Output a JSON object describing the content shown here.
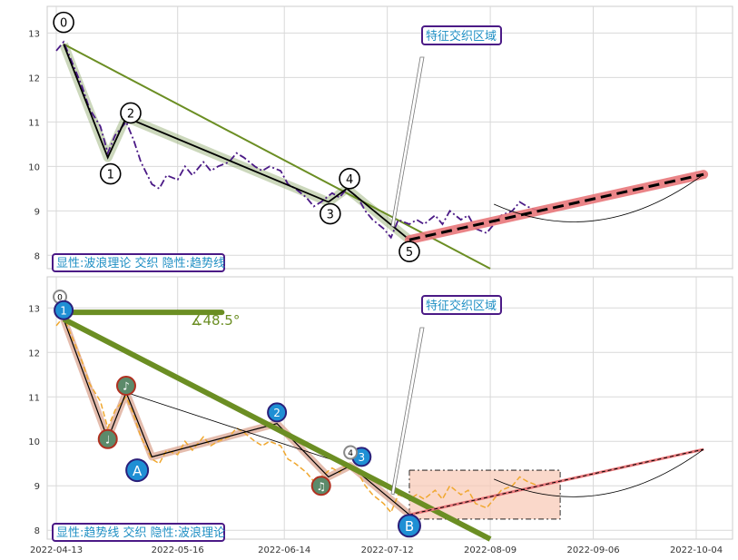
{
  "chart_data": [
    {
      "type": "line",
      "panel": "top",
      "ylim": [
        7.7,
        13.6
      ],
      "y_ticks": [
        "8",
        "9",
        "10",
        "11",
        "12",
        "13"
      ],
      "annotation_box": "特征交织区域",
      "caption": "显性:波浪理论 交织 隐性:趋势线",
      "price_series": {
        "x": [
          "2022-04-13",
          "2022-04-15",
          "2022-04-18",
          "2022-04-20",
          "2022-04-22",
          "2022-04-25",
          "2022-04-27",
          "2022-04-29",
          "2022-05-02",
          "2022-05-04",
          "2022-05-06",
          "2022-05-09",
          "2022-05-11",
          "2022-05-13",
          "2022-05-16",
          "2022-05-18",
          "2022-05-20",
          "2022-05-23",
          "2022-05-25",
          "2022-05-27",
          "2022-05-30",
          "2022-06-01",
          "2022-06-03",
          "2022-06-06",
          "2022-06-08",
          "2022-06-10",
          "2022-06-13",
          "2022-06-15",
          "2022-06-17",
          "2022-06-20",
          "2022-06-22",
          "2022-06-24",
          "2022-06-27",
          "2022-06-29",
          "2022-07-01",
          "2022-07-04",
          "2022-07-06",
          "2022-07-08",
          "2022-07-11",
          "2022-07-13",
          "2022-07-15",
          "2022-07-18",
          "2022-07-20",
          "2022-07-22",
          "2022-07-25",
          "2022-07-27",
          "2022-07-29",
          "2022-08-01",
          "2022-08-03",
          "2022-08-05",
          "2022-08-08",
          "2022-08-10",
          "2022-08-12",
          "2022-08-15",
          "2022-08-17",
          "2022-08-19",
          "2022-08-22"
        ],
        "y": [
          12.6,
          12.8,
          12.2,
          11.8,
          11.3,
          10.9,
          10.3,
          10.7,
          11.0,
          10.6,
          10.1,
          9.6,
          9.5,
          9.8,
          9.7,
          10.0,
          9.8,
          10.1,
          9.9,
          10.0,
          10.1,
          10.3,
          10.2,
          10.0,
          9.9,
          10.0,
          9.9,
          9.6,
          9.5,
          9.3,
          9.1,
          9.2,
          9.4,
          9.3,
          9.5,
          9.3,
          9.0,
          8.8,
          8.6,
          8.4,
          8.8,
          8.7,
          8.8,
          8.7,
          8.9,
          8.7,
          9.0,
          8.8,
          8.9,
          8.6,
          8.5,
          8.7,
          8.9,
          9.0,
          9.2,
          9.1,
          9.0
        ]
      },
      "wave_points": [
        {
          "label": "0",
          "date": "2022-04-15",
          "value": 12.75
        },
        {
          "label": "1",
          "date": "2022-04-27",
          "value": 10.2
        },
        {
          "label": "2",
          "date": "2022-05-02",
          "value": 11.1
        },
        {
          "label": "3",
          "date": "2022-06-26",
          "value": 9.2
        },
        {
          "label": "4",
          "date": "2022-07-01",
          "value": 9.5
        },
        {
          "label": "5",
          "date": "2022-07-18",
          "value": 8.35
        }
      ],
      "projection": {
        "from": {
          "date": "2022-07-18",
          "value": 8.35
        },
        "to": {
          "date": "2022-10-06",
          "value": 9.82
        }
      },
      "trendline": {
        "from": {
          "date": "2022-04-15",
          "value": 12.75
        },
        "to": {
          "date": "2022-08-09",
          "value": 7.7
        }
      }
    },
    {
      "type": "line",
      "panel": "bottom",
      "ylim": [
        7.8,
        13.7
      ],
      "y_ticks": [
        "8",
        "9",
        "10",
        "11",
        "12",
        "13"
      ],
      "x_ticks": [
        "2022-04-13",
        "2022-05-16",
        "2022-06-14",
        "2022-07-12",
        "2022-08-09",
        "2022-09-06",
        "2022-10-04"
      ],
      "annotation_box": "特征交织区域",
      "caption": "显性:趋势线 交织 隐性:波浪理论",
      "angle_label": "∡48.5°",
      "markers": [
        {
          "label": "0",
          "date": "2022-04-14",
          "value": 13.25
        },
        {
          "label": "1",
          "date": "2022-04-15",
          "value": 12.95
        },
        {
          "label": "2",
          "date": "2022-06-12",
          "value": 10.65
        },
        {
          "label": "3",
          "date": "2022-07-05",
          "value": 9.65
        },
        {
          "label": "4",
          "date": "2022-07-02",
          "value": 9.75
        },
        {
          "label": "A",
          "date": "2022-05-05",
          "value": 9.35
        },
        {
          "label": "B",
          "date": "2022-07-18",
          "value": 8.1
        },
        {
          "label": "♩",
          "date": "2022-04-27",
          "value": 10.05
        },
        {
          "label": "♪",
          "date": "2022-05-02",
          "value": 11.25
        },
        {
          "label": "♫",
          "date": "2022-06-24",
          "value": 9.0
        }
      ],
      "projection": {
        "from": {
          "date": "2022-07-18",
          "value": 8.35
        },
        "to": {
          "date": "2022-10-06",
          "value": 9.82
        }
      },
      "trendline": {
        "from": {
          "date": "2022-04-15",
          "value": 12.75
        },
        "to": {
          "date": "2022-08-09",
          "value": 7.8
        }
      }
    }
  ]
}
